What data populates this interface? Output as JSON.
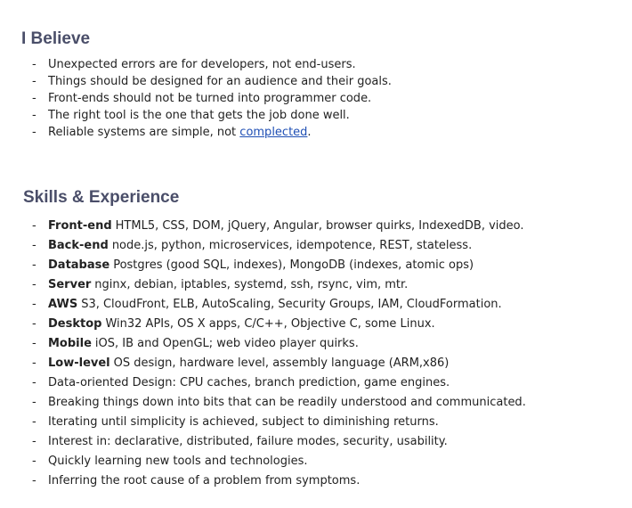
{
  "believe": {
    "heading": "I Believe",
    "items": [
      {
        "text": "Unexpected errors are for developers, not end-users."
      },
      {
        "text": "Things should be designed for an audience and their goals."
      },
      {
        "text": "Front-ends should not be turned into programmer code."
      },
      {
        "text": "The right tool is the one that gets the job done well."
      },
      {
        "text": "Reliable systems are simple, not ",
        "link": "complected",
        "after": "."
      }
    ]
  },
  "skills": {
    "heading": "Skills & Experience",
    "items": [
      {
        "lead": "Front-end",
        "text": "HTML5, CSS, DOM, jQuery, Angular, browser quirks, IndexedDB, video."
      },
      {
        "lead": "Back-end",
        "text": "node.js, python, microservices, idempotence, REST, stateless."
      },
      {
        "lead": "Database",
        "text": "Postgres (good SQL, indexes), MongoDB (indexes, atomic ops)"
      },
      {
        "lead": "Server",
        "text": "nginx, debian, iptables, systemd, ssh, rsync, vim, mtr."
      },
      {
        "lead": "AWS",
        "text": "S3, CloudFront, ELB, AutoScaling, Security Groups, IAM, CloudFormation."
      },
      {
        "lead": "Desktop",
        "text": "Win32 APIs, OS X apps, C/C++, Objective C, some Linux."
      },
      {
        "lead": "Mobile",
        "text": "iOS, IB and OpenGL; web video player quirks."
      },
      {
        "lead": "Low-level",
        "text": "OS design, hardware level, assembly language (ARM,x86)"
      },
      {
        "lead": "",
        "text": "Data-oriented Design: CPU caches, branch prediction, game engines."
      },
      {
        "lead": "",
        "text": "Breaking things down into bits that can be readily understood and communicated."
      },
      {
        "lead": "",
        "text": "Iterating until simplicity is achieved, subject to diminishing returns."
      },
      {
        "lead": "",
        "text": "Interest in: declarative, distributed, failure modes, security, usability."
      },
      {
        "lead": "",
        "text": "Quickly learning new tools and technologies."
      },
      {
        "lead": "",
        "text": "Inferring the root cause of a problem from symptoms."
      }
    ]
  }
}
